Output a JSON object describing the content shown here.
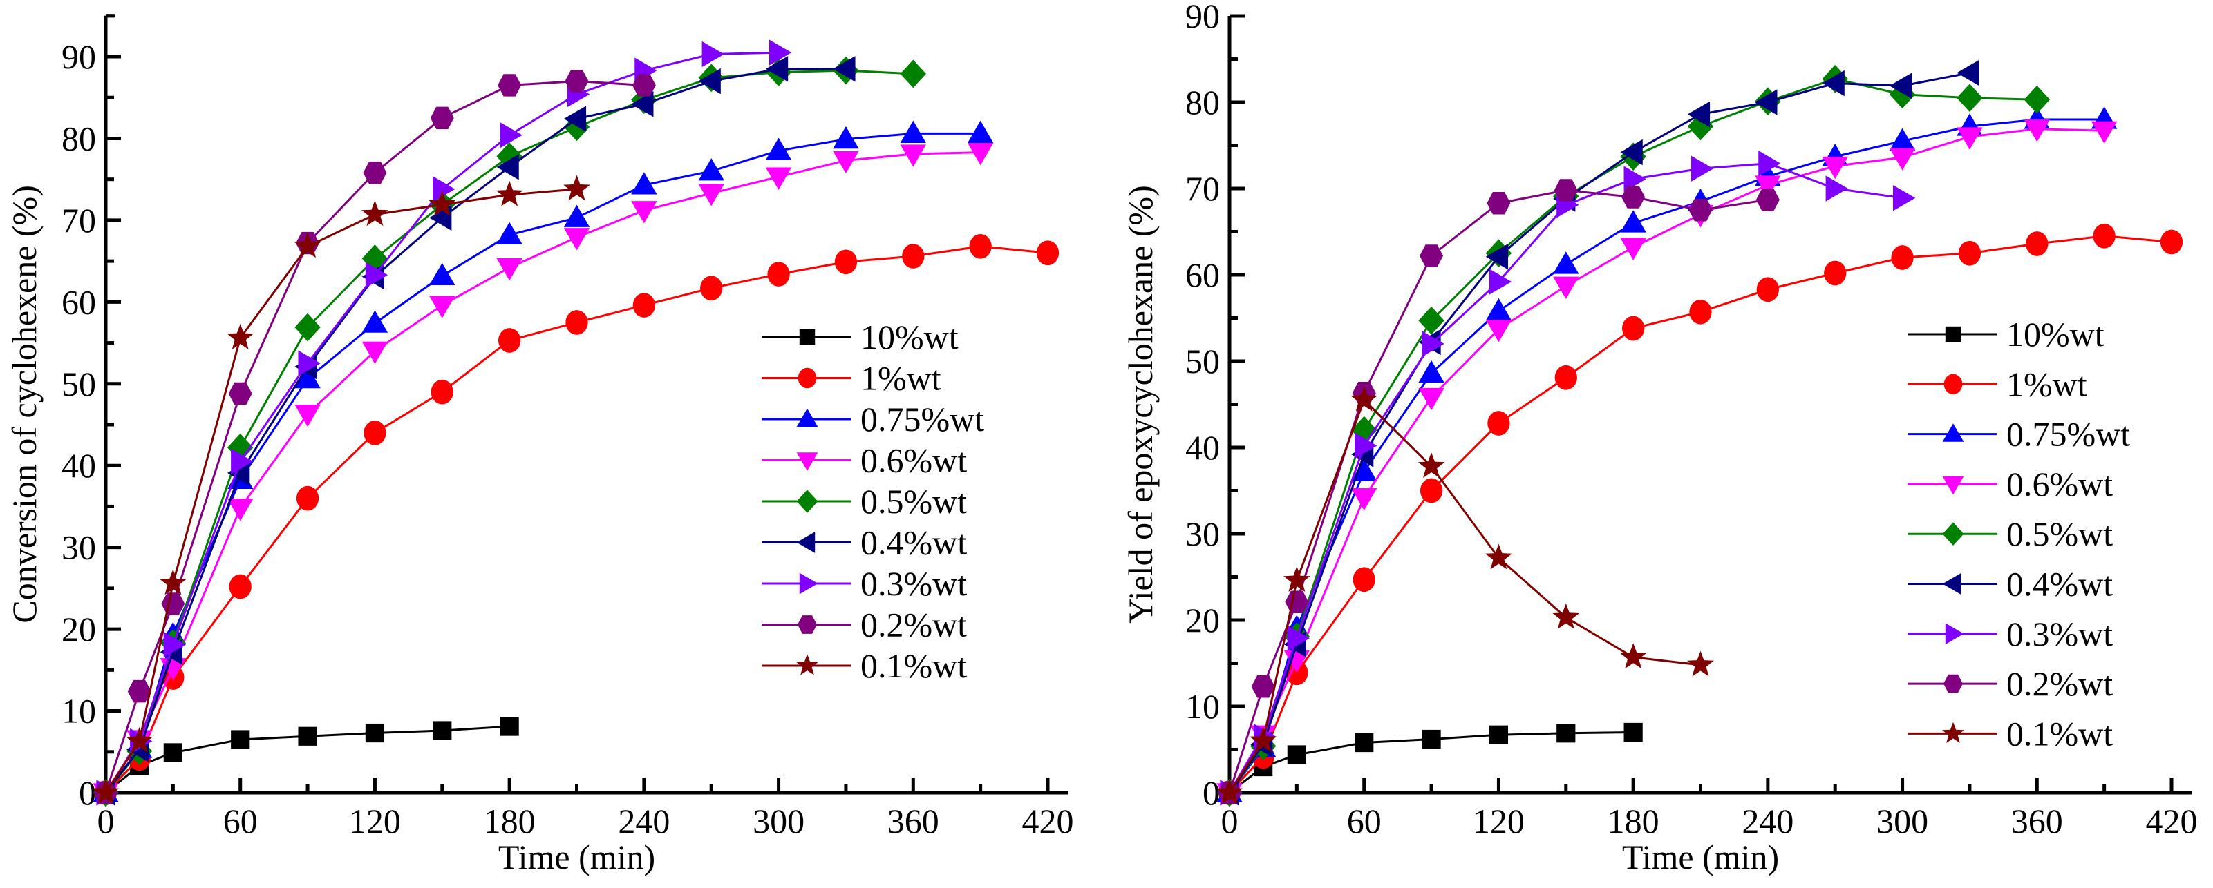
{
  "chart_data": [
    {
      "type": "line",
      "title": "",
      "xlabel": "Time (min)",
      "ylabel": "Conversion of cyclohexene (%)",
      "xlim": [
        0,
        420
      ],
      "ylim": [
        0,
        95
      ],
      "xticks": [
        0,
        60,
        120,
        180,
        240,
        300,
        360,
        420
      ],
      "yticks": [
        0,
        10,
        20,
        30,
        40,
        50,
        60,
        70,
        80,
        90
      ],
      "grid": false,
      "legend_position": "center-right",
      "series": [
        {
          "name": "10%wt",
          "marker": "square",
          "color": "#000000",
          "x": [
            0,
            15,
            30,
            60,
            90,
            120,
            150,
            180
          ],
          "y": [
            0,
            3.3,
            4.9,
            6.5,
            6.9,
            7.3,
            7.6,
            8.1
          ]
        },
        {
          "name": "1%wt",
          "marker": "circle",
          "color": "#ff0000",
          "x": [
            0,
            15,
            30,
            60,
            90,
            120,
            150,
            180,
            210,
            240,
            270,
            300,
            330,
            360,
            390,
            420
          ],
          "y": [
            0,
            4.2,
            14.1,
            25.2,
            36.0,
            44.0,
            49.0,
            55.3,
            57.5,
            59.6,
            61.7,
            63.4,
            64.9,
            65.6,
            66.8,
            66.0
          ]
        },
        {
          "name": "0.75%wt",
          "marker": "triangle-up",
          "color": "#0000ff",
          "x": [
            0,
            15,
            30,
            60,
            90,
            120,
            150,
            180,
            210,
            240,
            270,
            300,
            330,
            360,
            390
          ],
          "y": [
            0,
            5.4,
            19.3,
            38.3,
            50.6,
            57.4,
            63.2,
            68.2,
            70.3,
            74.3,
            76.0,
            78.5,
            79.9,
            80.6,
            80.6
          ]
        },
        {
          "name": "0.6%wt",
          "marker": "triangle-down",
          "color": "#ff00ff",
          "x": [
            0,
            15,
            30,
            60,
            90,
            120,
            150,
            180,
            210,
            240,
            270,
            300,
            330,
            360,
            390
          ],
          "y": [
            0,
            6.5,
            15.3,
            34.8,
            46.3,
            54.0,
            59.6,
            64.2,
            67.9,
            71.2,
            73.3,
            75.3,
            77.3,
            78.1,
            78.3
          ]
        },
        {
          "name": "0.5%wt",
          "marker": "diamond",
          "color": "#008000",
          "x": [
            0,
            15,
            30,
            60,
            90,
            120,
            150,
            180,
            210,
            240,
            270,
            300,
            330,
            360
          ],
          "y": [
            0,
            5.1,
            18.3,
            42.2,
            56.9,
            65.3,
            71.9,
            77.8,
            81.4,
            84.7,
            87.4,
            88.1,
            88.3,
            87.9
          ]
        },
        {
          "name": "0.4%wt",
          "marker": "triangle-left",
          "color": "#000080",
          "x": [
            0,
            15,
            30,
            60,
            90,
            120,
            150,
            180,
            210,
            240,
            270,
            300,
            330
          ],
          "y": [
            0,
            5.3,
            17.2,
            39.1,
            52.1,
            63.1,
            70.3,
            76.5,
            82.4,
            84.2,
            87.0,
            88.5,
            88.5
          ]
        },
        {
          "name": "0.3%wt",
          "marker": "triangle-right",
          "color": "#8000ff",
          "x": [
            0,
            15,
            30,
            60,
            90,
            120,
            150,
            180,
            210,
            240,
            270,
            300
          ],
          "y": [
            0,
            6.3,
            18.1,
            40.5,
            52.5,
            63.3,
            73.8,
            80.4,
            85.4,
            88.3,
            90.3,
            90.5
          ]
        },
        {
          "name": "0.2%wt",
          "marker": "hexagon",
          "color": "#800080",
          "x": [
            0,
            15,
            30,
            60,
            90,
            120,
            150,
            180,
            210,
            240
          ],
          "y": [
            0,
            12.4,
            23.1,
            48.8,
            67.2,
            75.8,
            82.5,
            86.5,
            87.0,
            86.5
          ]
        },
        {
          "name": "0.1%wt",
          "marker": "star",
          "color": "#800000",
          "x": [
            0,
            15,
            30,
            60,
            90,
            120,
            150,
            180,
            210
          ],
          "y": [
            0,
            6.3,
            25.6,
            55.6,
            66.8,
            70.7,
            71.9,
            73.1,
            73.8
          ]
        }
      ]
    },
    {
      "type": "line",
      "title": "",
      "xlabel": "Time (min)",
      "ylabel": "Yield of epoxycyclohexane (%)",
      "xlim": [
        0,
        420
      ],
      "ylim": [
        0,
        90
      ],
      "xticks": [
        0,
        60,
        120,
        180,
        240,
        300,
        360,
        420
      ],
      "yticks": [
        0,
        10,
        20,
        30,
        40,
        50,
        60,
        70,
        80,
        90
      ],
      "grid": false,
      "legend_position": "center-right",
      "series": [
        {
          "name": "10%wt",
          "marker": "square",
          "color": "#000000",
          "x": [
            0,
            15,
            30,
            60,
            90,
            120,
            150,
            180
          ],
          "y": [
            0,
            3.0,
            4.4,
            5.8,
            6.2,
            6.7,
            6.9,
            7.0
          ]
        },
        {
          "name": "1%wt",
          "marker": "circle",
          "color": "#ff0000",
          "x": [
            0,
            15,
            30,
            60,
            90,
            120,
            150,
            180,
            210,
            240,
            270,
            300,
            330,
            360,
            390,
            420
          ],
          "y": [
            0,
            4.2,
            13.9,
            24.7,
            35.0,
            42.8,
            48.1,
            53.8,
            55.7,
            58.3,
            60.2,
            62.0,
            62.5,
            63.6,
            64.5,
            63.8
          ]
        },
        {
          "name": "0.75%wt",
          "marker": "triangle-up",
          "color": "#0000ff",
          "x": [
            0,
            15,
            30,
            60,
            90,
            120,
            150,
            180,
            210,
            240,
            270,
            300,
            330,
            360,
            390
          ],
          "y": [
            0,
            5.2,
            19.1,
            37.2,
            48.6,
            55.8,
            61.2,
            66.0,
            68.5,
            71.4,
            73.7,
            75.5,
            77.2,
            78.0,
            78.0
          ]
        },
        {
          "name": "0.6%wt",
          "marker": "triangle-down",
          "color": "#ff00ff",
          "x": [
            0,
            15,
            30,
            60,
            90,
            120,
            150,
            180,
            210,
            240,
            270,
            300,
            330,
            360,
            390
          ],
          "y": [
            0,
            6.7,
            15.4,
            34.2,
            45.8,
            53.7,
            58.7,
            63.2,
            67.0,
            70.4,
            72.6,
            73.6,
            76.0,
            76.9,
            76.7
          ]
        },
        {
          "name": "0.5%wt",
          "marker": "diamond",
          "color": "#008000",
          "x": [
            0,
            15,
            30,
            60,
            90,
            120,
            150,
            180,
            210,
            240,
            270,
            300,
            330,
            360
          ],
          "y": [
            0,
            5.4,
            18.1,
            42.0,
            54.7,
            62.5,
            69.1,
            73.7,
            77.2,
            80.1,
            82.7,
            80.9,
            80.5,
            80.3
          ]
        },
        {
          "name": "0.4%wt",
          "marker": "triangle-left",
          "color": "#000080",
          "x": [
            0,
            15,
            30,
            60,
            90,
            120,
            150,
            180,
            210,
            240,
            270,
            300,
            330
          ],
          "y": [
            0,
            5.6,
            17.2,
            39.2,
            52.2,
            62.1,
            68.8,
            74.2,
            78.6,
            80.0,
            82.2,
            81.9,
            83.4
          ]
        },
        {
          "name": "0.3%wt",
          "marker": "triangle-right",
          "color": "#8000ff",
          "x": [
            0,
            15,
            30,
            60,
            90,
            120,
            150,
            180,
            210,
            240,
            270,
            300
          ],
          "y": [
            0,
            6.5,
            17.9,
            40.2,
            52.0,
            59.2,
            68.1,
            71.1,
            72.3,
            72.9,
            70.0,
            68.9
          ]
        },
        {
          "name": "0.2%wt",
          "marker": "hexagon",
          "color": "#800080",
          "x": [
            0,
            15,
            30,
            60,
            90,
            120,
            150,
            180,
            210,
            240
          ],
          "y": [
            0,
            12.3,
            22.1,
            46.3,
            62.2,
            68.3,
            69.8,
            69.0,
            67.5,
            68.7
          ]
        },
        {
          "name": "0.1%wt",
          "marker": "star",
          "color": "#800000",
          "x": [
            0,
            15,
            30,
            60,
            90,
            120,
            150,
            180,
            210
          ],
          "y": [
            0,
            6.0,
            24.6,
            45.5,
            37.8,
            27.2,
            20.3,
            15.7,
            14.8
          ]
        }
      ]
    }
  ]
}
